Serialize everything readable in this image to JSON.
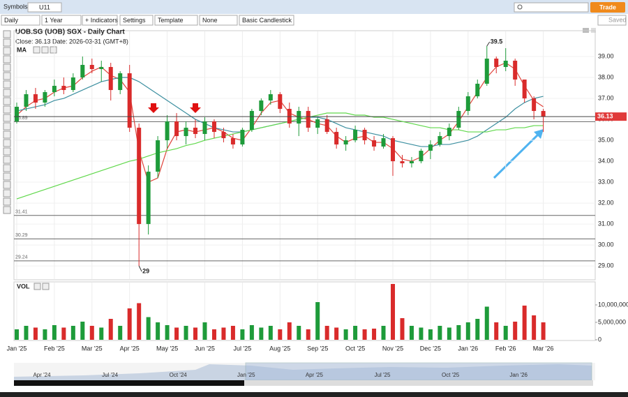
{
  "toolbar": {
    "symbols_label": "Symbols:",
    "symbol": "U11",
    "trade": "Trade",
    "saved": "Saved",
    "controls": [
      "Daily",
      "1 Year",
      "+ Indicators",
      "Settings",
      "Template",
      "None",
      "Basic Candlestick"
    ]
  },
  "chart_data": {
    "type": "candlestick",
    "title": "UOB.SG (UOB) SGX - Daily Chart",
    "close_text": "Close: 36.13  Date: 2026-03-31 (GMT+8)",
    "ma_label": "MA",
    "x": [
      0,
      0.25,
      0.5,
      0.75,
      1,
      1.25,
      1.5,
      1.75,
      2,
      2.25,
      2.5,
      2.75,
      3,
      3.25,
      3.5,
      3.75,
      4,
      4.25,
      4.5,
      4.75,
      5,
      5.25,
      5.5,
      5.75,
      6,
      6.25,
      6.5,
      6.75,
      7,
      7.25,
      7.5,
      7.75,
      8,
      8.25,
      8.5,
      8.75,
      9,
      9.25,
      9.5,
      9.75,
      10,
      10.25,
      10.5,
      10.75,
      11,
      11.25,
      11.5,
      11.75,
      12,
      12.25,
      12.5,
      12.75,
      13,
      13.25,
      13.5,
      13.75,
      14
    ],
    "open": [
      35.9,
      36.6,
      37.2,
      36.8,
      37.3,
      37.6,
      37.4,
      38.0,
      38.6,
      38.4,
      38.5,
      37.4,
      38.2,
      35.6,
      31.0,
      33.5,
      35.0,
      35.9,
      35.2,
      35.6,
      35.3,
      35.9,
      35.4,
      35.1,
      34.8,
      35.5,
      36.4,
      36.9,
      37.2,
      36.5,
      35.8,
      36.4,
      35.6,
      36.0,
      35.4,
      34.8,
      35.0,
      35.5,
      35.0,
      34.7,
      35.1,
      34.0,
      33.9,
      34.0,
      34.5,
      34.8,
      35.2,
      35.6,
      36.4,
      37.1,
      37.7,
      38.9,
      38.5,
      38.8,
      37.9,
      37.0,
      36.4
    ],
    "high": [
      36.8,
      37.4,
      37.5,
      37.4,
      37.9,
      38.0,
      38.2,
      39.0,
      38.9,
      38.8,
      38.7,
      38.3,
      38.6,
      35.8,
      33.8,
      35.2,
      36.2,
      36.3,
      35.9,
      36.0,
      36.1,
      36.0,
      35.6,
      35.3,
      35.6,
      36.5,
      37.0,
      37.4,
      37.3,
      36.8,
      36.6,
      36.6,
      36.1,
      36.2,
      35.6,
      35.2,
      35.7,
      35.6,
      35.2,
      35.3,
      35.2,
      34.3,
      34.2,
      34.6,
      35.0,
      35.4,
      35.8,
      36.6,
      37.3,
      37.9,
      39.5,
      39.0,
      39.4,
      38.9,
      37.9,
      37.1,
      36.5
    ],
    "low": [
      35.8,
      36.4,
      36.5,
      36.6,
      37.1,
      37.2,
      37.3,
      37.9,
      38.2,
      37.8,
      36.9,
      37.2,
      35.4,
      29.0,
      30.5,
      33.2,
      34.6,
      35.0,
      34.8,
      35.1,
      35.0,
      35.1,
      34.9,
      34.6,
      34.7,
      35.4,
      36.2,
      36.7,
      36.3,
      35.6,
      35.2,
      35.4,
      35.3,
      35.3,
      34.6,
      34.5,
      34.9,
      34.8,
      34.5,
      34.6,
      33.3,
      33.7,
      33.7,
      33.9,
      34.1,
      34.7,
      35.0,
      35.5,
      36.2,
      37.0,
      37.6,
      38.2,
      38.3,
      37.6,
      36.8,
      36.0,
      35.4
    ],
    "close": [
      36.6,
      37.2,
      36.8,
      37.3,
      37.6,
      37.4,
      38.0,
      38.6,
      38.4,
      38.5,
      37.4,
      38.2,
      35.6,
      31.0,
      33.5,
      35.0,
      35.9,
      35.2,
      35.6,
      35.3,
      35.9,
      35.4,
      35.1,
      34.8,
      35.5,
      36.4,
      36.9,
      37.2,
      36.5,
      35.8,
      36.4,
      35.6,
      36.0,
      35.4,
      34.8,
      35.0,
      35.5,
      35.0,
      34.7,
      35.1,
      34.0,
      33.9,
      34.0,
      34.5,
      34.8,
      35.2,
      35.6,
      36.4,
      37.1,
      37.7,
      38.9,
      38.5,
      38.8,
      37.9,
      37.0,
      36.4,
      36.13
    ],
    "up_color": "#1e9b3a",
    "down_color": "#d92b2b",
    "ma_lines": [
      {
        "color": "#e0443c",
        "values": [
          36.2,
          36.6,
          36.9,
          37.0,
          37.3,
          37.5,
          37.6,
          38.0,
          38.3,
          38.5,
          38.1,
          37.9,
          37.3,
          34.5,
          33.0,
          33.2,
          34.6,
          35.4,
          35.5,
          35.4,
          35.5,
          35.6,
          35.4,
          35.1,
          35.0,
          35.6,
          36.3,
          36.8,
          36.9,
          36.3,
          36.1,
          36.0,
          35.8,
          35.7,
          35.2,
          34.9,
          35.1,
          35.2,
          34.9,
          34.9,
          34.6,
          34.1,
          34.0,
          34.2,
          34.6,
          35.0,
          35.3,
          35.9,
          36.6,
          37.3,
          38.0,
          38.5,
          38.7,
          38.4,
          37.6,
          36.9,
          36.6
        ]
      },
      {
        "color": "#3c8fa0",
        "values": [
          36.4,
          36.5,
          36.6,
          36.7,
          36.9,
          37.0,
          37.2,
          37.4,
          37.6,
          37.8,
          37.9,
          38.0,
          38.0,
          37.8,
          37.5,
          37.2,
          36.9,
          36.6,
          36.3,
          36.0,
          35.8,
          35.6,
          35.5,
          35.4,
          35.4,
          35.5,
          35.6,
          35.7,
          35.8,
          35.9,
          36.0,
          36.1,
          36.1,
          36.0,
          35.8,
          35.6,
          35.5,
          35.4,
          35.3,
          35.2,
          35.0,
          34.9,
          34.8,
          34.7,
          34.7,
          34.8,
          34.8,
          34.9,
          35.0,
          35.2,
          35.5,
          35.8,
          36.1,
          36.5,
          36.8,
          37.0,
          37.1
        ]
      },
      {
        "color": "#5fd84a",
        "values": [
          32.2,
          32.35,
          32.5,
          32.65,
          32.8,
          32.95,
          33.1,
          33.25,
          33.4,
          33.55,
          33.7,
          33.85,
          34.0,
          34.1,
          34.25,
          34.4,
          34.5,
          34.6,
          34.75,
          34.85,
          35.0,
          35.1,
          35.2,
          35.3,
          35.4,
          35.5,
          35.6,
          35.7,
          35.8,
          35.9,
          36.0,
          36.1,
          36.2,
          36.3,
          36.3,
          36.3,
          36.2,
          36.2,
          36.1,
          36.1,
          36.0,
          35.9,
          35.8,
          35.7,
          35.6,
          35.6,
          35.5,
          35.5,
          35.4,
          35.4,
          35.4,
          35.5,
          35.5,
          35.6,
          35.6,
          35.7,
          35.7
        ]
      }
    ],
    "xlim": [
      -0.074,
      15.38
    ],
    "xticks": [
      {
        "value": 0,
        "label": "Jan '25"
      },
      {
        "value": 1,
        "label": "Feb '25"
      },
      {
        "value": 2,
        "label": "Mar '25"
      },
      {
        "value": 3,
        "label": "Apr '25"
      },
      {
        "value": 4,
        "label": "May '25"
      },
      {
        "value": 5,
        "label": "Jun '25"
      },
      {
        "value": 6,
        "label": "Jul '25"
      },
      {
        "value": 7,
        "label": "Aug '25"
      },
      {
        "value": 8,
        "label": "Sep '25"
      },
      {
        "value": 9,
        "label": "Oct '25"
      },
      {
        "value": 10,
        "label": "Nov '25"
      },
      {
        "value": 11,
        "label": "Dec '25"
      },
      {
        "value": 12,
        "label": "Jan '26"
      },
      {
        "value": 13,
        "label": "Feb '26"
      },
      {
        "value": 14,
        "label": "Mar '26"
      }
    ],
    "ylim": [
      28.37,
      40.2
    ],
    "yticks": [
      {
        "value": 29,
        "label": "29.00"
      },
      {
        "value": 30,
        "label": "30.00"
      },
      {
        "value": 31,
        "label": "31.00"
      },
      {
        "value": 32,
        "label": "32.00"
      },
      {
        "value": 33,
        "label": "33.00"
      },
      {
        "value": 34,
        "label": "34.00"
      },
      {
        "value": 35,
        "label": "35.00"
      },
      {
        "value": 36,
        "label": "36.00"
      },
      {
        "value": 37,
        "label": "37.00"
      },
      {
        "value": 38,
        "label": "38.00"
      },
      {
        "value": 39,
        "label": "39.00"
      }
    ],
    "levels": [
      {
        "value": 35.89,
        "label": "35.89"
      },
      {
        "value": 31.41,
        "label": "31.41"
      },
      {
        "value": 30.29,
        "label": "30.29"
      },
      {
        "value": 29.24,
        "label": "29.24"
      }
    ],
    "last_price": {
      "value": 36.13,
      "label": "36.13"
    },
    "annotations": [
      {
        "text": "39.5",
        "x": 12.5,
        "value": 39.5
      },
      {
        "text": "29",
        "x": 3.25,
        "value": 29
      }
    ],
    "volume": {
      "label": "VOL",
      "values": [
        3000000,
        4000000,
        3500000,
        3000000,
        4200000,
        3500000,
        4000000,
        5200000,
        4000000,
        3500000,
        6000000,
        4000000,
        9000000,
        10500000,
        6500000,
        5000000,
        4200000,
        3500000,
        4000000,
        3500000,
        5000000,
        3000000,
        3500000,
        4000000,
        3000000,
        4200000,
        3500000,
        4000000,
        3000000,
        5000000,
        4000000,
        3000000,
        10800000,
        4000000,
        3500000,
        3000000,
        4000000,
        3000000,
        3200000,
        4000000,
        16000000,
        6200000,
        4000000,
        3500000,
        3000000,
        4000000,
        3500000,
        4200000,
        5000000,
        6000000,
        9500000,
        5000000,
        4000000,
        5200000,
        9800000,
        7000000,
        5000000
      ],
      "ylim": [
        0,
        16400000
      ],
      "yticks": [
        0,
        {
          "value": 5000000,
          "label": "5,000,000"
        },
        {
          "value": 10000000,
          "label": "10,000,000"
        }
      ]
    }
  },
  "navigator": {
    "labels": [
      "Apr '24",
      "Jul '24",
      "Oct '24",
      "Jan '25",
      "Apr '25",
      "Jul '25",
      "Oct '25",
      "Jan '26"
    ]
  }
}
